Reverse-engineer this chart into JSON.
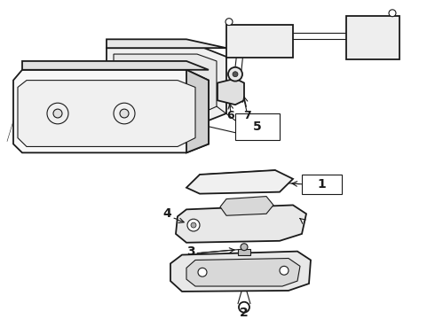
{
  "bg_color": "#ffffff",
  "line_color": "#1a1a1a",
  "fig_width": 4.9,
  "fig_height": 3.6,
  "dpi": 100,
  "label_fontsize": 9,
  "label_fontweight": "bold",
  "lw_main": 1.3,
  "lw_thin": 0.8,
  "lw_med": 1.0
}
